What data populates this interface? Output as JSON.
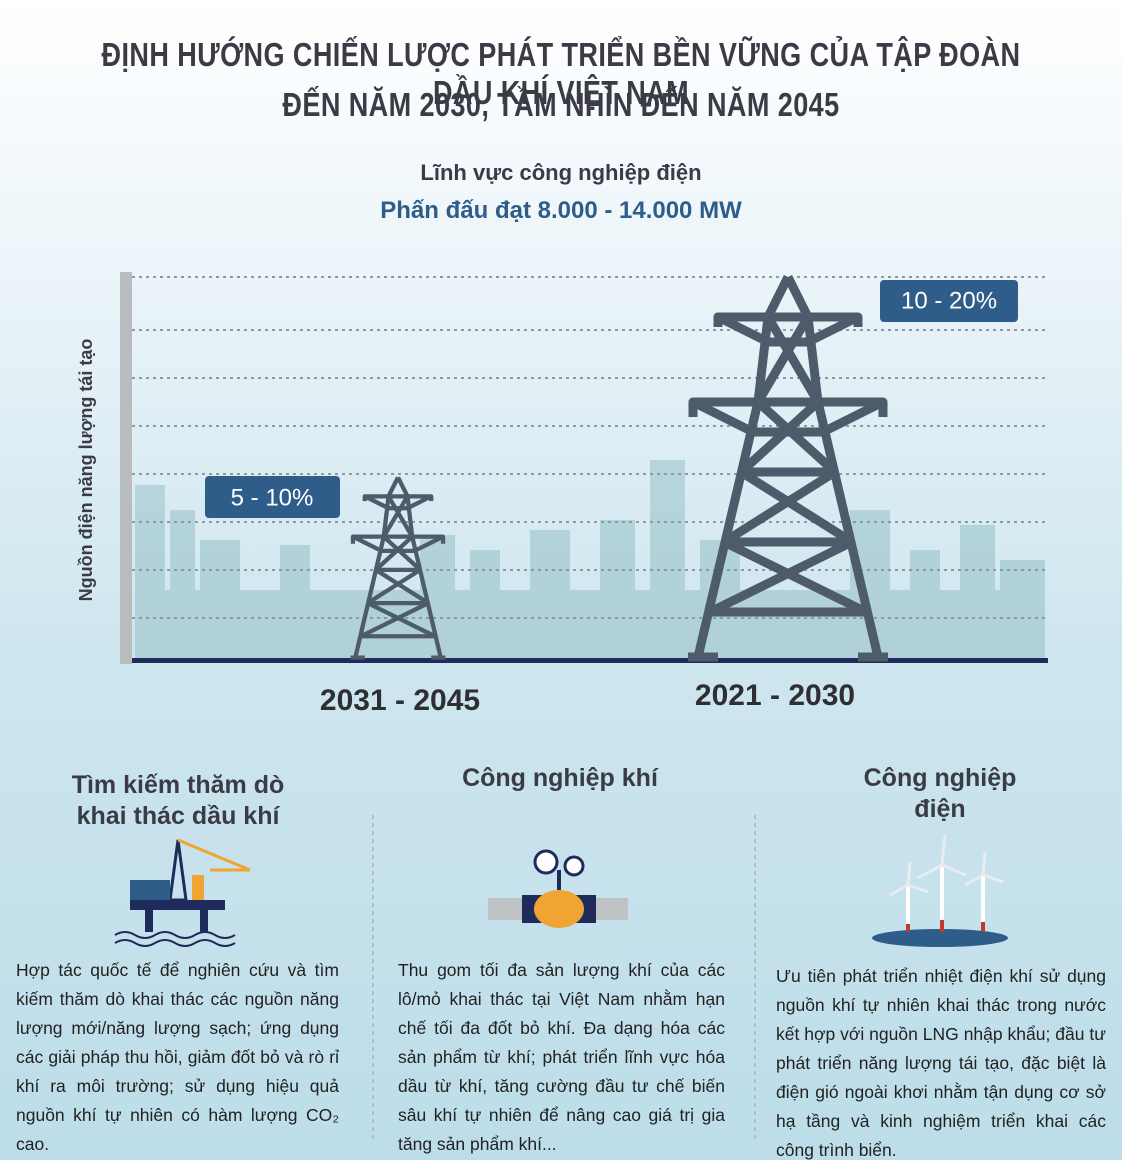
{
  "header": {
    "title_lines": [
      "ĐỊNH HƯỚNG CHIẾN LƯỢC PHÁT TRIỂN BỀN VỮNG CỦA TẬP ĐOÀN DẦU KHÍ VIỆT NAM",
      "ĐẾN NĂM 2030, TẦM NHÌN ĐẾN NĂM 2045"
    ]
  },
  "figure": {
    "heading": "Lĩnh vực công nghiệp điện",
    "goal": "Phấn đấu đạt 8.000 - 14.000 MW",
    "axis_label": "Nguồn điện năng lượng tái tạo",
    "periods": [
      {
        "label": "2031 - 2045",
        "share": "5 - 10%"
      },
      {
        "label": "2021 - 2030",
        "share": "10 - 20%"
      }
    ]
  },
  "sections": [
    {
      "title": "Tìm kiếm thăm dò khai thác dầu khí",
      "text": "Hợp tác quốc tế để nghiên cứu và tìm kiếm thăm dò khai thác các nguồn năng lượng mới/năng lượng sạch; ứng dụng các giải pháp thu hồi, giảm đốt bỏ và rò rỉ khí ra môi trường; sử dụng hiệu quả nguồn khí tự nhiên có hàm lượng CO₂ cao."
    },
    {
      "title": "Công nghiệp khí",
      "text": "Thu gom tối đa sản lượng khí của các lô/mỏ khai thác tại Việt Nam nhằm hạn chế tối đa đốt bỏ khí. Đa dạng hóa các sản phẩm từ khí; phát triển lĩnh vực hóa dầu từ khí, tăng cường đầu tư chế biến sâu khí tự nhiên để nâng cao giá trị gia tăng sản phẩm khí..."
    },
    {
      "title": "Công nghiệp điện",
      "text": "Ưu tiên phát triển nhiệt điện khí sử dụng nguồn khí tự nhiên khai thác trong nước kết hợp với nguồn LNG nhập khẩu; đầu tư phát triển năng lượng tái tạo, đặc biệt là điện gió ngoài khơi nhằm tận dụng cơ sở hạ tầng và kinh nghiệm triển khai các công trình biển."
    }
  ]
}
